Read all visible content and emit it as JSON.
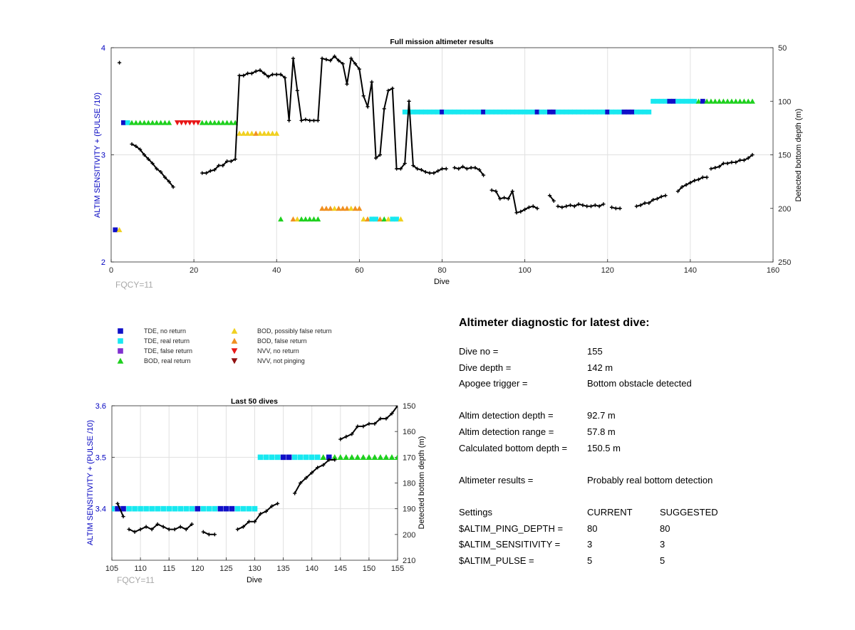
{
  "chart_data": [
    {
      "type": "scatter",
      "title": "Full mission altimeter results",
      "xlabel": "Dive",
      "ylabel": "ALTIM SENSITIVITY + (PULSE /10)",
      "y2label": "Detected bottom depth (m)",
      "xlim": [
        0,
        160
      ],
      "ylim": [
        2,
        4
      ],
      "y2lim": [
        250,
        50
      ],
      "y2_reversed": true,
      "xticks": [
        "0",
        "20",
        "40",
        "60",
        "80",
        "100",
        "120",
        "140",
        "160"
      ],
      "yticks": [
        "2",
        "3",
        "4"
      ],
      "y2ticks": [
        "50",
        "100",
        "150",
        "200",
        "250"
      ],
      "grid": true,
      "annotation": "FQCY=11",
      "markers": [
        {
          "x": 1,
          "y": 2.3,
          "c": "TDE_NO"
        },
        {
          "x": 2,
          "y": 2.3,
          "c": "BOD_POSS"
        },
        {
          "x": 3,
          "y": 3.3,
          "c": "TDE_NO"
        },
        {
          "x": 4,
          "y": 3.3,
          "c": "TDE_REAL"
        },
        {
          "range": [
            5,
            14
          ],
          "y": 3.3,
          "c": "BOD_REAL"
        },
        {
          "range": [
            16,
            21
          ],
          "y": 3.3,
          "c": "NVV_NO"
        },
        {
          "range": [
            22,
            30
          ],
          "y": 3.3,
          "c": "BOD_REAL"
        },
        {
          "range": [
            31,
            40
          ],
          "y": 3.2,
          "c": "BOD_POSS"
        },
        {
          "x": 35,
          "y": 3.2,
          "c": "BOD_FALSE"
        },
        {
          "x": 41,
          "y": 2.4,
          "c": "BOD_REAL"
        },
        {
          "x": 44,
          "y": 2.4,
          "c": "BOD_FALSE"
        },
        {
          "x": 45,
          "y": 2.4,
          "c": "BOD_POSS"
        },
        {
          "range": [
            46,
            50
          ],
          "y": 2.4,
          "c": "BOD_REAL"
        },
        {
          "range": [
            51,
            60
          ],
          "y": 2.5,
          "c": "BOD_FALSE"
        },
        {
          "x": 54,
          "y": 2.5,
          "c": "BOD_POSS"
        },
        {
          "x": 58,
          "y": 2.5,
          "c": "BOD_POSS"
        },
        {
          "x": 61,
          "y": 2.4,
          "c": "BOD_POSS"
        },
        {
          "x": 62,
          "y": 2.4,
          "c": "BOD_FALSE"
        },
        {
          "range": [
            63,
            64
          ],
          "y": 2.4,
          "c": "TDE_REAL"
        },
        {
          "x": 65,
          "y": 2.4,
          "c": "BOD_FALSE"
        },
        {
          "x": 66,
          "y": 2.4,
          "c": "BOD_REAL"
        },
        {
          "x": 67,
          "y": 2.4,
          "c": "BOD_POSS"
        },
        {
          "range": [
            68,
            69
          ],
          "y": 2.4,
          "c": "TDE_REAL"
        },
        {
          "x": 70,
          "y": 2.4,
          "c": "BOD_POSS"
        },
        {
          "range": [
            71,
            130
          ],
          "y": 3.4,
          "c": "TDE_REAL"
        },
        {
          "x": 80,
          "y": 3.4,
          "c": "TDE_NO"
        },
        {
          "x": 90,
          "y": 3.4,
          "c": "TDE_NO"
        },
        {
          "x": 103,
          "y": 3.4,
          "c": "TDE_NO"
        },
        {
          "x": 106,
          "y": 3.4,
          "c": "TDE_NO"
        },
        {
          "x": 107,
          "y": 3.4,
          "c": "TDE_NO"
        },
        {
          "x": 120,
          "y": 3.4,
          "c": "TDE_NO"
        },
        {
          "x": 124,
          "y": 3.4,
          "c": "TDE_NO"
        },
        {
          "x": 125,
          "y": 3.4,
          "c": "TDE_NO"
        },
        {
          "x": 126,
          "y": 3.4,
          "c": "TDE_NO"
        },
        {
          "range": [
            131,
            141
          ],
          "y": 3.5,
          "c": "TDE_REAL"
        },
        {
          "x": 135,
          "y": 3.5,
          "c": "TDE_NO"
        },
        {
          "x": 136,
          "y": 3.5,
          "c": "TDE_NO"
        },
        {
          "x": 142,
          "y": 3.5,
          "c": "BOD_REAL"
        },
        {
          "x": 143,
          "y": 3.5,
          "c": "TDE_NO"
        },
        {
          "x": 144,
          "y": 3.5,
          "c": "BOD_REAL"
        },
        {
          "range": [
            145,
            155
          ],
          "y": 3.5,
          "c": "BOD_REAL"
        }
      ],
      "depth_segments": [
        [
          [
            2,
            64
          ]
        ],
        [
          [
            5,
            140
          ],
          [
            6,
            142
          ],
          [
            7,
            145
          ],
          [
            8,
            150
          ],
          [
            9,
            154
          ],
          [
            10,
            158
          ],
          [
            11,
            163
          ],
          [
            12,
            166
          ],
          [
            13,
            171
          ],
          [
            14,
            175
          ],
          [
            15,
            180
          ]
        ],
        [
          [
            22,
            167
          ],
          [
            23,
            167
          ],
          [
            24,
            165
          ],
          [
            25,
            164
          ],
          [
            26,
            160
          ],
          [
            27,
            160
          ],
          [
            28,
            156
          ],
          [
            29,
            156
          ],
          [
            30,
            154
          ],
          [
            31,
            76
          ],
          [
            32,
            76
          ],
          [
            33,
            74
          ],
          [
            34,
            74
          ],
          [
            35,
            72
          ],
          [
            36,
            71
          ],
          [
            37,
            74
          ],
          [
            38,
            77
          ],
          [
            39,
            75
          ],
          [
            40,
            75
          ],
          [
            41,
            75
          ],
          [
            42,
            78
          ],
          [
            43,
            118
          ],
          [
            44,
            60
          ],
          [
            45,
            90
          ],
          [
            46,
            118
          ],
          [
            47,
            117
          ],
          [
            48,
            118
          ],
          [
            49,
            118
          ],
          [
            50,
            118
          ],
          [
            51,
            60
          ],
          [
            52,
            61
          ],
          [
            53,
            62
          ],
          [
            54,
            58
          ],
          [
            55,
            62
          ],
          [
            56,
            65
          ],
          [
            57,
            84
          ],
          [
            58,
            60
          ],
          [
            59,
            65
          ],
          [
            60,
            70
          ],
          [
            61,
            95
          ],
          [
            62,
            105
          ],
          [
            63,
            82
          ],
          [
            64,
            153
          ],
          [
            65,
            150
          ],
          [
            66,
            107
          ],
          [
            67,
            90
          ],
          [
            68,
            88
          ],
          [
            69,
            163
          ],
          [
            70,
            163
          ],
          [
            71,
            158
          ],
          [
            72,
            100
          ],
          [
            73,
            160
          ],
          [
            74,
            163
          ],
          [
            75,
            164
          ],
          [
            76,
            166
          ],
          [
            77,
            167
          ],
          [
            78,
            167
          ],
          [
            79,
            165
          ],
          [
            80,
            163
          ],
          [
            81,
            163
          ]
        ],
        [
          [
            83,
            162
          ],
          [
            84,
            163
          ],
          [
            85,
            161
          ],
          [
            86,
            163
          ],
          [
            87,
            162
          ],
          [
            88,
            162
          ],
          [
            89,
            164
          ],
          [
            90,
            169
          ]
        ],
        [
          [
            92,
            183
          ],
          [
            93,
            184
          ],
          [
            94,
            191
          ],
          [
            95,
            190
          ],
          [
            96,
            191
          ],
          [
            97,
            184
          ],
          [
            98,
            204
          ],
          [
            99,
            203
          ],
          [
            100,
            201
          ],
          [
            101,
            199
          ],
          [
            102,
            198
          ],
          [
            103,
            200
          ]
        ],
        [
          [
            106,
            188
          ],
          [
            107,
            193
          ]
        ],
        [
          [
            108,
            198
          ],
          [
            109,
            199
          ],
          [
            110,
            198
          ],
          [
            111,
            197
          ],
          [
            112,
            198
          ],
          [
            113,
            196
          ],
          [
            114,
            197
          ],
          [
            115,
            198
          ],
          [
            116,
            198
          ],
          [
            117,
            197
          ],
          [
            118,
            198
          ],
          [
            119,
            196
          ]
        ],
        [
          [
            121,
            199
          ],
          [
            122,
            200
          ],
          [
            123,
            200
          ]
        ],
        [
          [
            127,
            198
          ],
          [
            128,
            197
          ],
          [
            129,
            195
          ],
          [
            130,
            195
          ],
          [
            131,
            192
          ],
          [
            132,
            191
          ],
          [
            133,
            189
          ],
          [
            134,
            188
          ]
        ],
        [
          [
            137,
            184
          ],
          [
            138,
            180
          ],
          [
            139,
            178
          ],
          [
            140,
            176
          ],
          [
            141,
            174
          ],
          [
            142,
            173
          ],
          [
            143,
            171
          ],
          [
            144,
            171
          ]
        ],
        [
          [
            145,
            163
          ],
          [
            146,
            162
          ],
          [
            147,
            161
          ],
          [
            148,
            158
          ],
          [
            149,
            158
          ],
          [
            150,
            157
          ],
          [
            151,
            157
          ],
          [
            152,
            155
          ],
          [
            153,
            155
          ],
          [
            154,
            153
          ],
          [
            155,
            150
          ]
        ]
      ]
    },
    {
      "type": "scatter",
      "title": "Last 50 dives",
      "xlabel": "Dive",
      "ylabel": "ALTIM SENSITIVITY + (PULSE /10)",
      "y2label": "Detected bottom depth (m)",
      "xlim": [
        105,
        155
      ],
      "ylim": [
        3.3,
        3.6
      ],
      "y2lim": [
        210,
        150
      ],
      "y2_reversed": true,
      "xticks": [
        "105",
        "110",
        "115",
        "120",
        "125",
        "130",
        "135",
        "140",
        "145",
        "150",
        "155"
      ],
      "yticks": [
        "3.4",
        "3.5",
        "3.6"
      ],
      "y2ticks": [
        "150",
        "160",
        "170",
        "180",
        "190",
        "200",
        "210"
      ],
      "grid": true,
      "annotation": "FQCY=11"
    }
  ],
  "legend": {
    "items": [
      {
        "key": "TDE_NO",
        "label": "TDE, no return",
        "color": "#1010c8",
        "shape": "square"
      },
      {
        "key": "TDE_REAL",
        "label": "TDE, real return",
        "color": "#18e8f0",
        "shape": "square"
      },
      {
        "key": "TDE_FALSE",
        "label": "TDE, false return",
        "color": "#8030d0",
        "shape": "square"
      },
      {
        "key": "BOD_REAL",
        "label": "BOD, real return",
        "color": "#1ed01e",
        "shape": "triangle-up"
      },
      {
        "key": "BOD_POSS",
        "label": "BOD, possibly false return",
        "color": "#f0d020",
        "shape": "triangle-up"
      },
      {
        "key": "BOD_FALSE",
        "label": "BOD, false return",
        "color": "#f09020",
        "shape": "triangle-up"
      },
      {
        "key": "NVV_NO",
        "label": "NVV, no return",
        "color": "#e81818",
        "shape": "triangle-down"
      },
      {
        "key": "NVV_NOT",
        "label": "NVV, not pinging",
        "color": "#901010",
        "shape": "triangle-down"
      }
    ]
  },
  "colors": {
    "axis_left": "#0000c0",
    "depth_line": "#000000",
    "annotation": "#a8a8a8",
    "grid": "#e0e0e0"
  },
  "diagnostic": {
    "title": "Altimeter diagnostic for latest dive:",
    "dive_no_label": "Dive no =",
    "dive_no": "155",
    "dive_depth_label": "Dive depth =",
    "dive_depth": "142 m",
    "apogee_label": "Apogee trigger =",
    "apogee": "Bottom obstacle detected",
    "detect_depth_label": "Altim detection depth =",
    "detect_depth": "92.7 m",
    "detect_range_label": "Altim detection range =",
    "detect_range": "57.8 m",
    "calc_depth_label": "Calculated bottom depth =",
    "calc_depth": "150.5 m",
    "results_label": "Altimeter results =",
    "results": "Probably real bottom detection",
    "settings_label": "Settings",
    "current_label": "CURRENT",
    "suggested_label": "SUGGESTED",
    "settings": [
      {
        "name": "$ALTIM_PING_DEPTH =",
        "current": "80",
        "suggested": "80"
      },
      {
        "name": "$ALTIM_SENSITIVITY =",
        "current": "3",
        "suggested": "3"
      },
      {
        "name": "$ALTIM_PULSE =",
        "current": "5",
        "suggested": "5"
      }
    ]
  }
}
